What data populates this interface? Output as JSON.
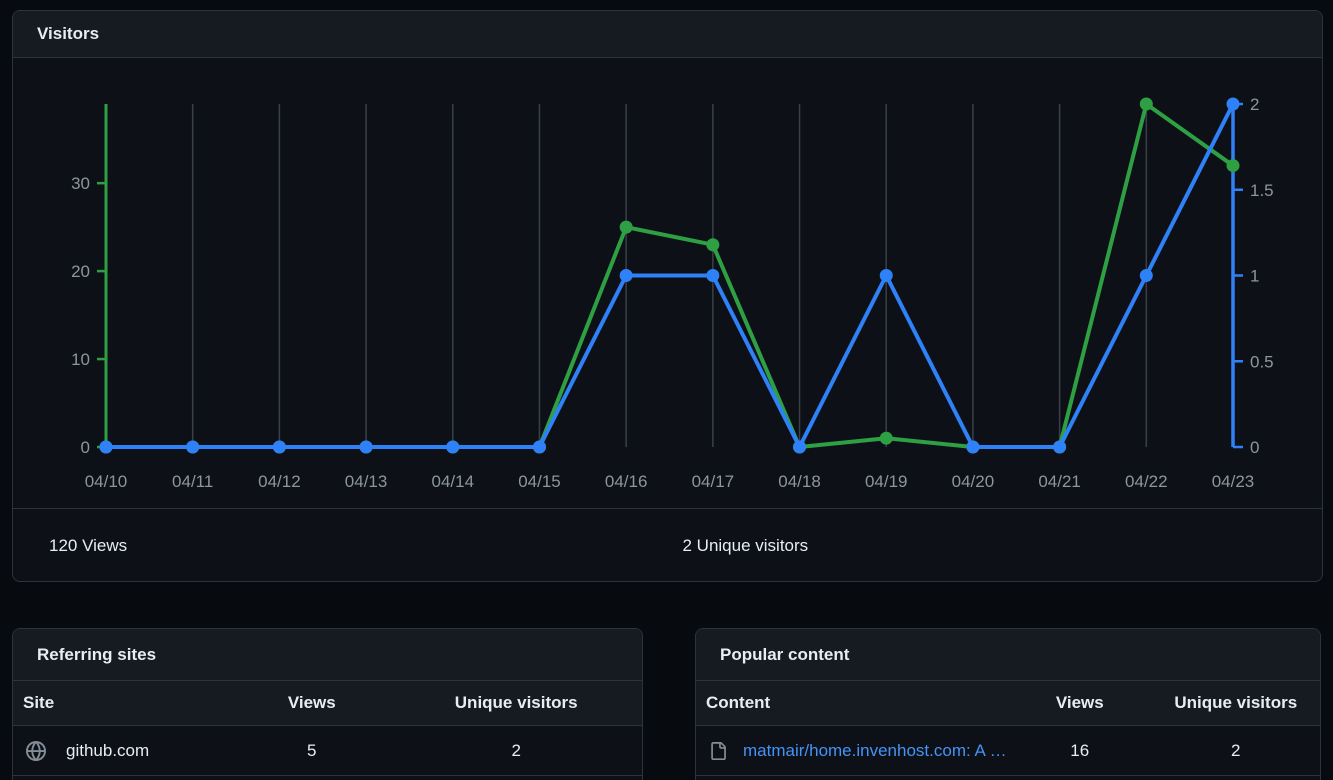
{
  "visitors_panel": {
    "title": "Visitors",
    "views_summary": "120 Views",
    "unique_summary": "2 Unique visitors"
  },
  "chart_data": {
    "type": "line",
    "title": "Visitors",
    "categories": [
      "04/10",
      "04/11",
      "04/12",
      "04/13",
      "04/14",
      "04/15",
      "04/16",
      "04/17",
      "04/18",
      "04/19",
      "04/20",
      "04/21",
      "04/22",
      "04/23"
    ],
    "series": [
      {
        "name": "Views",
        "axis": "left",
        "color": "#2ea043",
        "values": [
          0,
          0,
          0,
          0,
          0,
          0,
          25,
          23,
          0,
          1,
          0,
          0,
          39,
          32
        ]
      },
      {
        "name": "Unique visitors",
        "axis": "right",
        "color": "#2f81f7",
        "values": [
          0,
          0,
          0,
          0,
          0,
          0,
          1,
          1,
          0,
          1,
          0,
          0,
          1,
          2
        ]
      }
    ],
    "left_axis": {
      "max": 39,
      "ticks": [
        0,
        10,
        20,
        30
      ],
      "labels": [
        "0",
        "10",
        "20",
        "30"
      ],
      "color": "#2ea043"
    },
    "right_axis": {
      "max": 2,
      "ticks": [
        0,
        0.5,
        1,
        1.5,
        2
      ],
      "labels": [
        "0",
        "0.5",
        "1",
        "1.5",
        "2"
      ],
      "color": "#2f81f7"
    },
    "grid": {
      "vertical": true,
      "color": "#3a4047"
    },
    "legend": "none"
  },
  "referring_sites": {
    "title": "Referring sites",
    "headers": {
      "site": "Site",
      "views": "Views",
      "unique": "Unique visitors"
    },
    "rows": [
      {
        "icon": "globe-icon",
        "site": "github.com",
        "views": "5",
        "unique": "2"
      }
    ]
  },
  "popular_content": {
    "title": "Popular content",
    "headers": {
      "content": "Content",
      "views": "Views",
      "unique": "Unique visitors"
    },
    "rows": [
      {
        "icon": "file-icon",
        "content": "matmair/home.invenhost.com: A …",
        "views": "16",
        "unique": "2"
      }
    ]
  }
}
